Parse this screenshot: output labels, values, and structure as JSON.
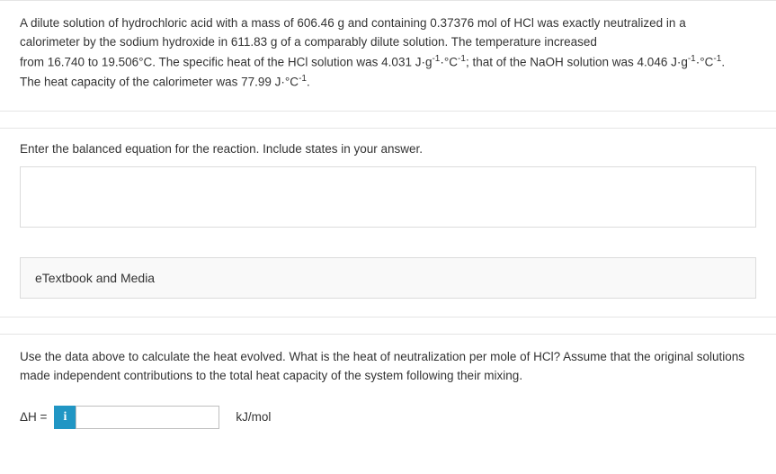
{
  "problem": {
    "line1_a": "A dilute solution of hydrochloric acid with a mass of ",
    "mass_hcl": "606.46 g",
    "line1_b": " and containing ",
    "mol_hcl": "0.37376 mol",
    "line1_c": " of HCl was exactly neutralized in a",
    "line2_a": "calorimeter by the sodium hydroxide in ",
    "mass_naoh": "611.83 g",
    "line2_b": " of a comparably dilute solution. The temperature increased",
    "line3_a": "from ",
    "t1": "16.740",
    "line3_b": " to ",
    "t2": "19.506°C",
    "line3_c": ". The specific heat of the HCl solution was ",
    "sh_hcl": "4.031 J·g",
    "line3_d": "; that of the NaOH solution was ",
    "sh_naoh": "4.046 J·g",
    "line3_e": ".",
    "line4_a": "The heat capacity of the calorimeter was ",
    "cal_cap": "77.99 J·°C",
    "line4_b": "."
  },
  "q1": {
    "prompt": "Enter the balanced equation for the reaction. Include states in your answer.",
    "etext": "eTextbook and Media"
  },
  "q2": {
    "text": "Use the data above to calculate the heat evolved. What is the heat of neutralization per mole of HCl? Assume that the original solutions made independent contributions to the total heat capacity of the system following their mixing.",
    "dh_label": "ΔH =",
    "info": "i",
    "unit": "kJ/mol",
    "value": ""
  },
  "sup": {
    "neg1": "-1",
    "degc_neg1": "·°C"
  }
}
